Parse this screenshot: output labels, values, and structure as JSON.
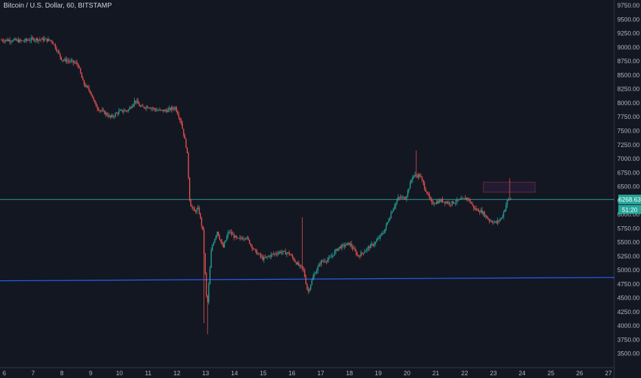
{
  "symbol_title": "Bitcoin / U.S. Dollar, 60, BITSTAMP",
  "colors": {
    "background": "#131722",
    "up": "#26a69a",
    "down": "#ef5350",
    "axis_text": "#b2b5be",
    "support_line": "#2962ff",
    "price_line": "#26a69a",
    "rect_fill": "#2a1e3a",
    "rect_stroke": "#6b2b3b"
  },
  "chart_data": {
    "type": "candlestick",
    "title": "Bitcoin / U.S. Dollar, 60, BITSTAMP",
    "interval": "60",
    "exchange": "BITSTAMP",
    "ylim": [
      3250,
      9850
    ],
    "y_ticks": [
      "9750.00",
      "9500.00",
      "9250.00",
      "9000.00",
      "8750.00",
      "8500.00",
      "8250.00",
      "8000.00",
      "7750.00",
      "7500.00",
      "7250.00",
      "7000.00",
      "6750.00",
      "6500.00",
      "6250.00",
      "6000.00",
      "5750.00",
      "5500.00",
      "5250.00",
      "5000.00",
      "4750.00",
      "4500.00",
      "4250.00",
      "4000.00",
      "3750.00",
      "3500.00"
    ],
    "x_ticks": [
      "6",
      "7",
      "8",
      "9",
      "10",
      "11",
      "12",
      "13",
      "14",
      "15",
      "16",
      "17",
      "18",
      "19",
      "20",
      "21",
      "22",
      "23",
      "24",
      "25",
      "26",
      "27"
    ],
    "xlim": [
      5.85,
      27.2
    ],
    "current_price": "6268.63",
    "countdown": "51:20",
    "price_path": [
      [
        5.9,
        9130
      ],
      [
        6.3,
        9130
      ],
      [
        6.6,
        9110
      ],
      [
        7.0,
        9150
      ],
      [
        7.4,
        9140
      ],
      [
        7.65,
        9120
      ],
      [
        7.8,
        8980
      ],
      [
        8.0,
        8780
      ],
      [
        8.3,
        8750
      ],
      [
        8.55,
        8700
      ],
      [
        8.75,
        8350
      ],
      [
        9.0,
        8200
      ],
      [
        9.15,
        7980
      ],
      [
        9.3,
        7880
      ],
      [
        9.5,
        7820
      ],
      [
        9.7,
        7740
      ],
      [
        10.0,
        7850
      ],
      [
        10.3,
        7870
      ],
      [
        10.55,
        8050
      ],
      [
        10.75,
        7920
      ],
      [
        11.0,
        7940
      ],
      [
        11.3,
        7870
      ],
      [
        11.6,
        7860
      ],
      [
        11.95,
        7920
      ],
      [
        12.15,
        7650
      ],
      [
        12.35,
        7150
      ],
      [
        12.45,
        6200
      ],
      [
        12.6,
        6050
      ],
      [
        12.75,
        6100
      ],
      [
        12.9,
        5700
      ],
      [
        13.05,
        4300
      ],
      [
        13.2,
        5400
      ],
      [
        13.4,
        5700
      ],
      [
        13.6,
        5400
      ],
      [
        13.8,
        5700
      ],
      [
        14.1,
        5550
      ],
      [
        14.4,
        5600
      ],
      [
        14.7,
        5350
      ],
      [
        15.0,
        5200
      ],
      [
        15.3,
        5280
      ],
      [
        15.6,
        5330
      ],
      [
        15.9,
        5300
      ],
      [
        16.2,
        5100
      ],
      [
        16.4,
        5000
      ],
      [
        16.55,
        4600
      ],
      [
        16.75,
        4900
      ],
      [
        17.0,
        5150
      ],
      [
        17.3,
        5200
      ],
      [
        17.6,
        5400
      ],
      [
        18.0,
        5480
      ],
      [
        18.3,
        5250
      ],
      [
        18.6,
        5380
      ],
      [
        18.9,
        5500
      ],
      [
        19.2,
        5700
      ],
      [
        19.5,
        6100
      ],
      [
        19.7,
        6300
      ],
      [
        19.95,
        6300
      ],
      [
        20.2,
        6700
      ],
      [
        20.45,
        6700
      ],
      [
        20.6,
        6500
      ],
      [
        20.85,
        6200
      ],
      [
        21.2,
        6250
      ],
      [
        21.5,
        6200
      ],
      [
        21.8,
        6250
      ],
      [
        22.1,
        6300
      ],
      [
        22.35,
        6100
      ],
      [
        22.6,
        6050
      ],
      [
        22.85,
        5900
      ],
      [
        23.1,
        5850
      ],
      [
        23.3,
        5950
      ],
      [
        23.5,
        6270
      ],
      [
        23.65,
        6268
      ]
    ],
    "support_line": {
      "start": [
        5.85,
        4810
      ],
      "end": [
        27.2,
        4870
      ]
    },
    "price_level_line": 6268.63,
    "highlight_box": {
      "x": [
        22.65,
        24.45
      ],
      "y": [
        6400,
        6580
      ]
    }
  }
}
